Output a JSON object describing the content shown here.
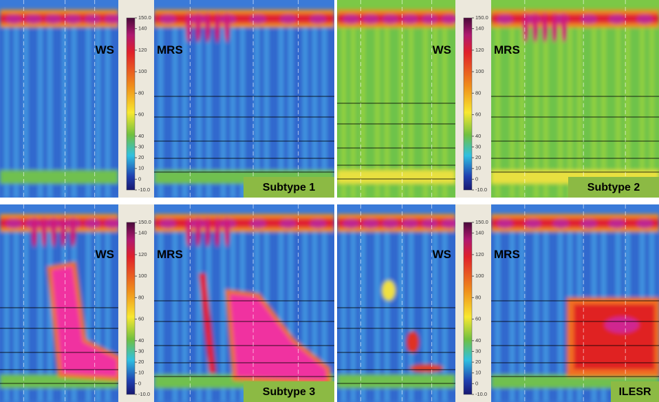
{
  "panels": [
    {
      "left_label": "WS",
      "right_label": "MRS",
      "caption": "Subtype 1"
    },
    {
      "left_label": "WS",
      "right_label": "MRS",
      "caption": "Subtype 2"
    },
    {
      "left_label": "WS",
      "right_label": "MRS",
      "caption": "Subtype 3"
    },
    {
      "left_label": "WS",
      "right_label": "MRS",
      "caption": "ILESR"
    }
  ],
  "colorbar": {
    "ticks": [
      "150.0",
      "140",
      "120",
      "100",
      "80",
      "60",
      "40",
      "30",
      "20",
      "10",
      "0",
      "-10.0"
    ]
  }
}
